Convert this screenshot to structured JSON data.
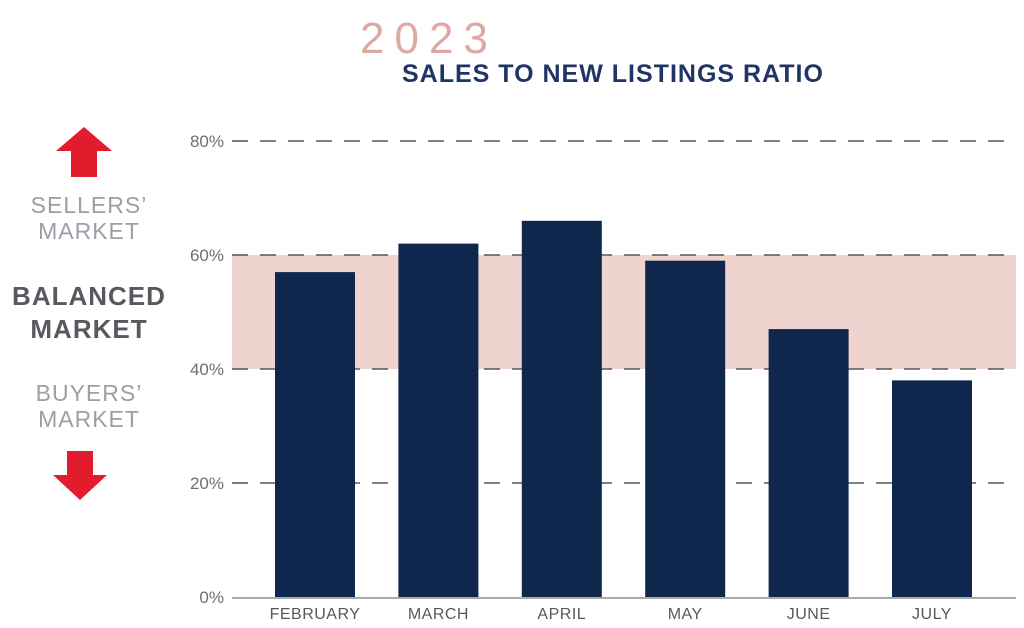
{
  "header": {
    "year": "2023",
    "title": "SALES TO NEW LISTINGS RATIO"
  },
  "legend": {
    "sellers_line1": "SELLERS’",
    "sellers_line2": "MARKET",
    "balanced_line1": "BALANCED",
    "balanced_line2": "MARKET",
    "buyers_line1": "BUYERS’",
    "buyers_line2": "MARKET"
  },
  "colors": {
    "bar": "#0f274c",
    "band": "#efd3cf",
    "arrow": "#e21b2d",
    "year": "#e0a8a2",
    "title": "#1f3566"
  },
  "chart_data": {
    "type": "bar",
    "title": "SALES TO NEW LISTINGS RATIO",
    "subtitle": "2023",
    "categories": [
      "FEBRUARY",
      "MARCH",
      "APRIL",
      "MAY",
      "JUNE",
      "JULY"
    ],
    "values": [
      57,
      62,
      66,
      59,
      47,
      38
    ],
    "unit": "%",
    "ylim": [
      0,
      80
    ],
    "yticks": [
      0,
      20,
      40,
      60,
      80
    ],
    "ytick_labels": [
      "0%",
      "20%",
      "40%",
      "60%",
      "80%"
    ],
    "xlabel": "",
    "ylabel": "",
    "grid": "dashed horizontal",
    "balanced_band": [
      40,
      60
    ]
  }
}
